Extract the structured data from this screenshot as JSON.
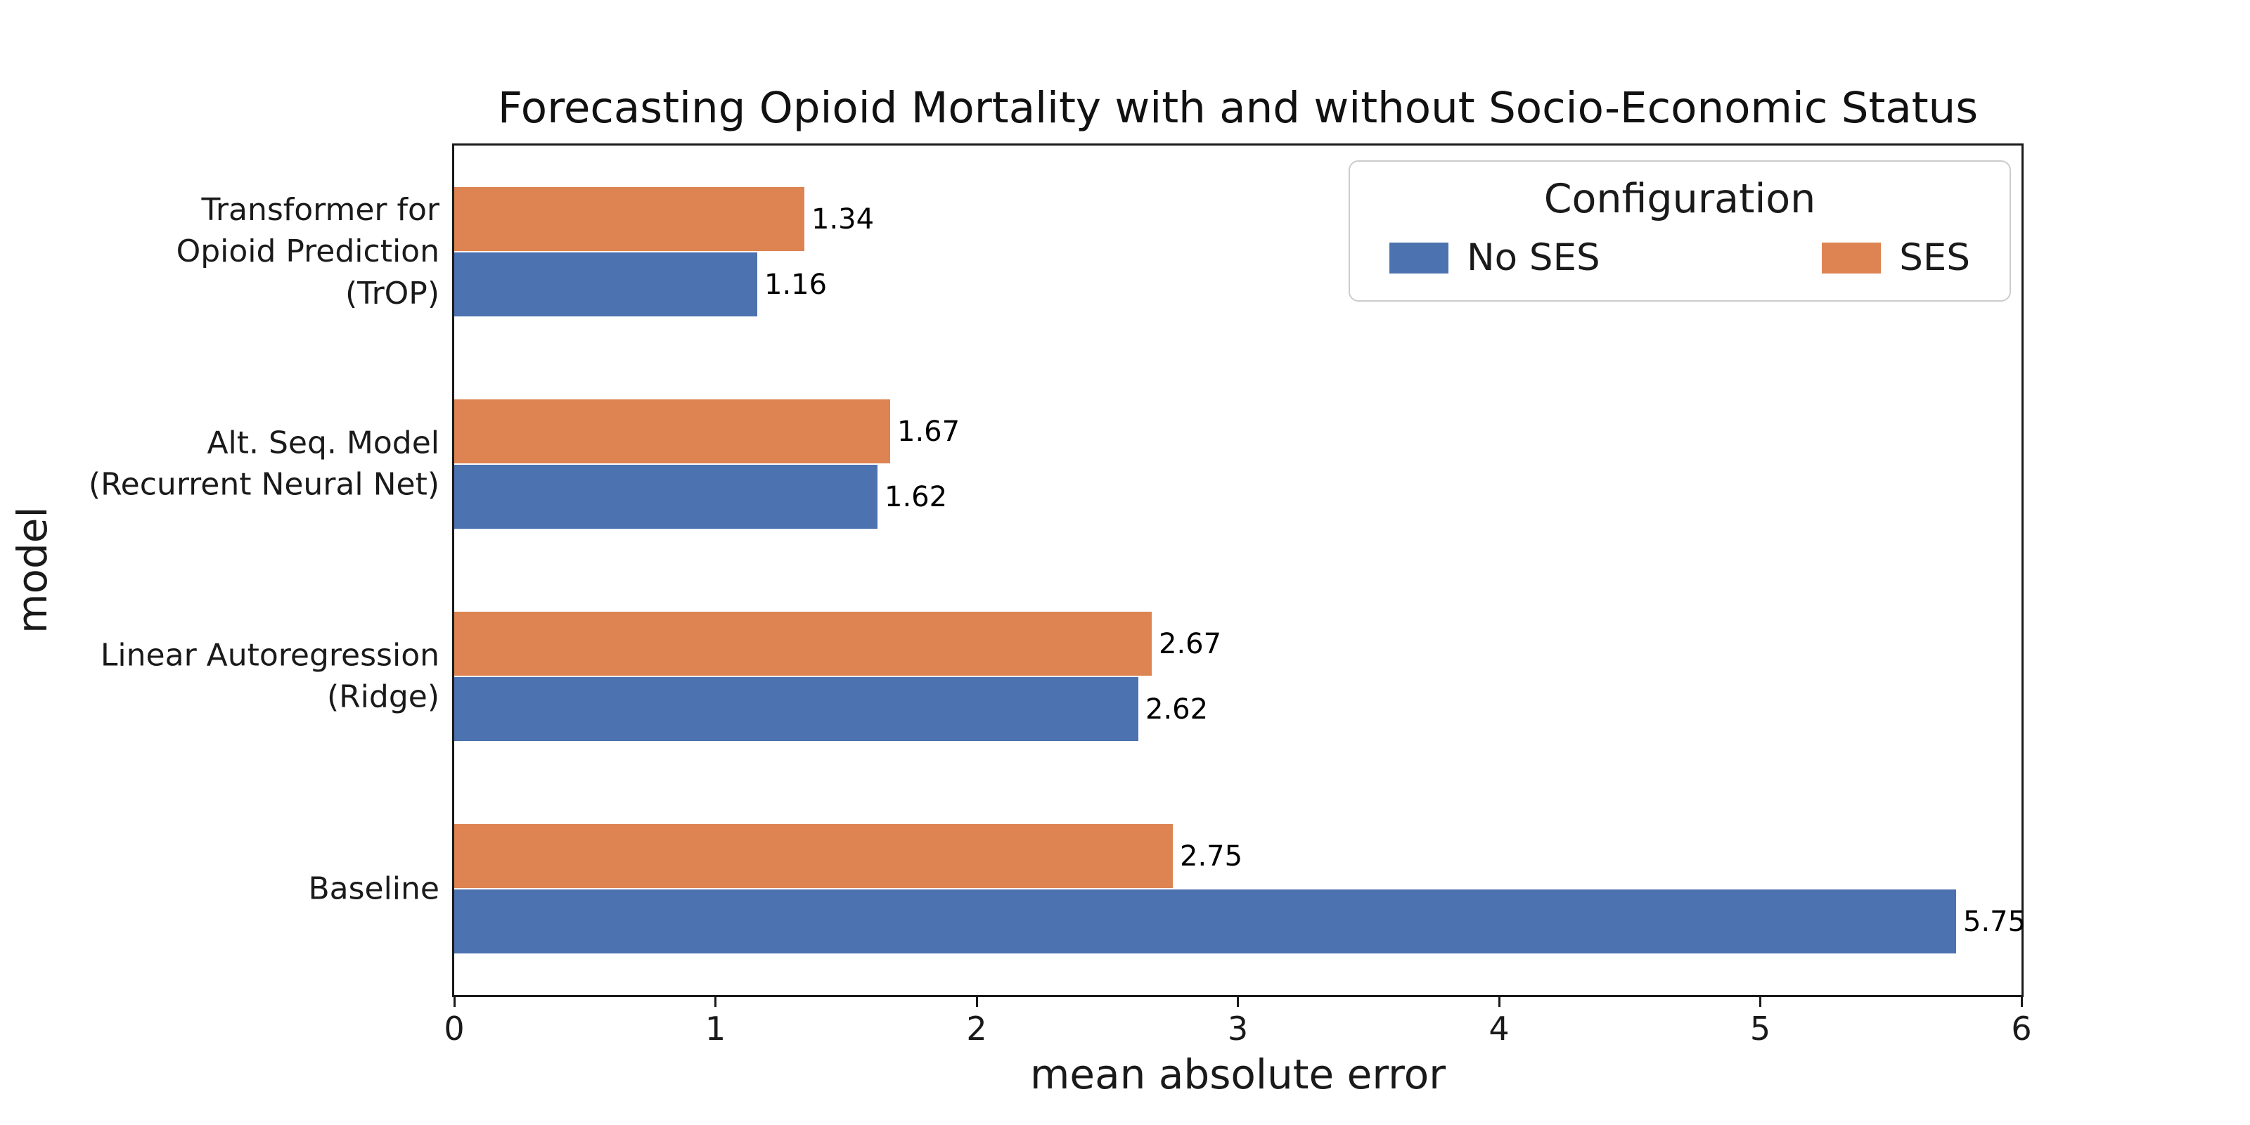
{
  "chart_data": {
    "type": "bar",
    "orientation": "horizontal",
    "title": "Forecasting Opioid Mortality with and without Socio-Economic Status",
    "xlabel": "mean absolute error",
    "ylabel": "model",
    "xlim": [
      0,
      6
    ],
    "xticks": [
      0,
      1,
      2,
      3,
      4,
      5,
      6
    ],
    "grid": false,
    "value_labels": true,
    "categories": [
      "Transformer for\nOpioid Prediction\n(TrOP)",
      "Alt. Seq. Model\n(Recurrent Neural Net)",
      "Linear Autoregression\n(Ridge)",
      "Baseline"
    ],
    "series": [
      {
        "name": "SES",
        "color": "#dd8452",
        "values": [
          1.34,
          1.67,
          2.67,
          2.75
        ]
      },
      {
        "name": "No SES",
        "color": "#4c72b0",
        "values": [
          1.16,
          1.62,
          2.62,
          5.75
        ]
      }
    ],
    "series_order_note": "top-to-bottom within each category group",
    "legend": {
      "title": "Configuration",
      "position": "upper right",
      "entries": [
        {
          "label": "No SES",
          "color": "#4c72b0"
        },
        {
          "label": "SES",
          "color": "#dd8452"
        }
      ]
    }
  }
}
